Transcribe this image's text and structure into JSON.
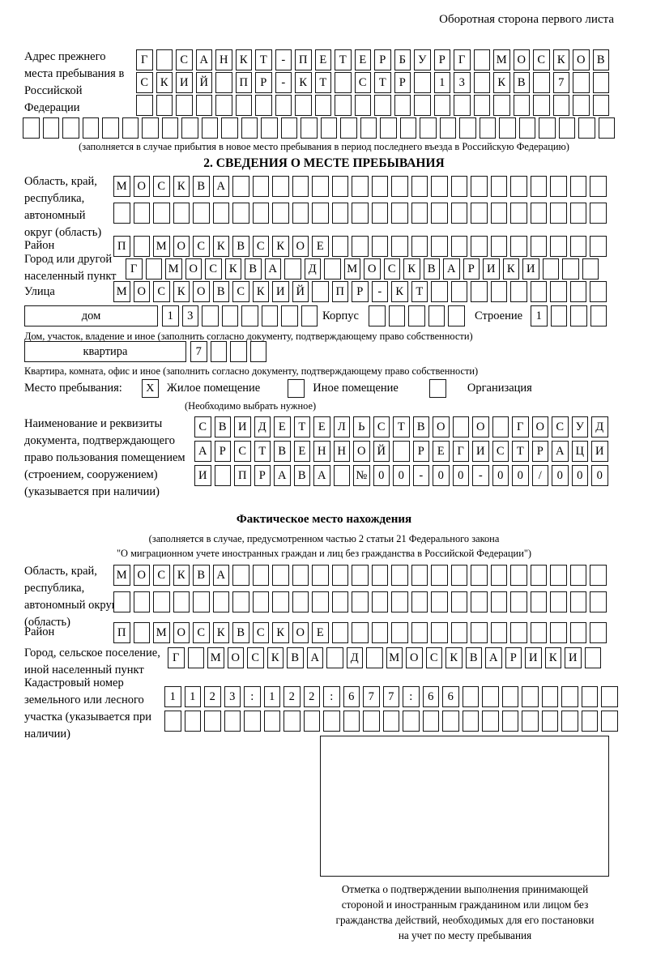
{
  "page": {
    "header_note": "Оборотная сторона первого листа"
  },
  "prev_address": {
    "label": "Адрес прежнего места пребывания в Российской Федерации",
    "rows": [
      {
        "text": "Г САНКТ-ПЕТЕРБУРГ МОСКОВ",
        "len": 24
      },
      {
        "text": "СКИЙ ПР-КТ СТР 13 КВ 7",
        "len": 24
      },
      {
        "text": "",
        "len": 24
      },
      {
        "text": "",
        "len": 30
      }
    ],
    "note": "(заполняется в случае прибытия в новое место пребывания в период последнего въезда в Российскую Федерацию)"
  },
  "section2": {
    "title": "2. СВЕДЕНИЯ О МЕСТЕ ПРЕБЫВАНИЯ",
    "region": {
      "label": "Область, край, республика, автономный округ (область)",
      "rows": [
        {
          "text": "МОСКВА",
          "len": 25
        },
        {
          "text": "",
          "len": 25
        }
      ]
    },
    "district": {
      "label": "Район",
      "row": {
        "text": "П МОСКВСКОЕ",
        "len": 25
      }
    },
    "city": {
      "label": "Город или другой населенный пункт",
      "row": {
        "text": "Г МОСКВА Д МОСКВАРИКИ",
        "len": 24
      }
    },
    "street": {
      "label": "Улица",
      "row": {
        "text": "МОСКОВСКИЙ ПР-КТ",
        "len": 25
      }
    },
    "house": {
      "box_label": "дом",
      "row": {
        "text": "13",
        "len": 8
      },
      "korpus_label": "Корпус",
      "korpus_row": {
        "text": "",
        "len": 5
      },
      "stroenie_label": "Строение",
      "stroenie_row": {
        "text": "1",
        "len": 4
      }
    },
    "house_note": "Дом, участок, владение и иное (заполнить согласно документу, подтверждающему право собственности)",
    "apartment": {
      "box_label": "квартира",
      "row": {
        "text": "7",
        "len": 4
      }
    },
    "apartment_note": "Квартира, комната, офис и иное (заполнить согласно документу, подтверждающему право собственности)",
    "stay_type": {
      "label": "Место пребывания:",
      "options": [
        {
          "label": "Жилое помещение",
          "mark": "X"
        },
        {
          "label": "Иное помещение",
          "mark": ""
        },
        {
          "label": "Организация",
          "mark": ""
        }
      ],
      "note": "(Необходимо выбрать нужное)"
    },
    "document": {
      "label": "Наименование и реквизиты документа, подтверждающего право пользования помещением (строением, сооружением) (указывается при наличии)",
      "rows": [
        {
          "text": "СВИДЕТЕЛЬСТВО О ГОСУД",
          "len": 21
        },
        {
          "text": "АРСТВЕННОЙ РЕГИСТРАЦИ",
          "len": 21
        },
        {
          "text": "И ПРАВА №00-00-00/000",
          "len": 21
        }
      ]
    }
  },
  "actual_location": {
    "title": "Фактическое место нахождения",
    "note_lines": [
      "(заполняется в случае, предусмотренном частью 2 статьи 21 Федерального закона",
      "\"О миграционном учете иностранных граждан и лиц без гражданства в Российской Федерации\")"
    ],
    "region": {
      "label": "Область, край, республика, автономный округ (область)",
      "rows": [
        {
          "text": "МОСКВА",
          "len": 25
        },
        {
          "text": "",
          "len": 25
        }
      ]
    },
    "district": {
      "label": "Район",
      "row": {
        "text": "П МОСКВСКОЕ",
        "len": 25
      }
    },
    "city": {
      "label": "Город, сельское поселение, иной населенный пункт",
      "row": {
        "text": "Г МОСКВА Д МОСКВАРИКИ",
        "len": 22
      }
    },
    "cadastral": {
      "label": "Кадастровый номер земельного или лесного участка (указывается при наличии)",
      "rows": [
        {
          "text": "1123:122:677:66",
          "len": 23
        },
        {
          "text": "",
          "len": 23
        }
      ]
    },
    "stamp_note_lines": [
      "Отметка о подтверждении выполнения принимающей",
      "стороной и иностранным гражданином или лицом без",
      "гражданства действий, необходимых для его постановки",
      "на учет по месту пребывания"
    ]
  }
}
